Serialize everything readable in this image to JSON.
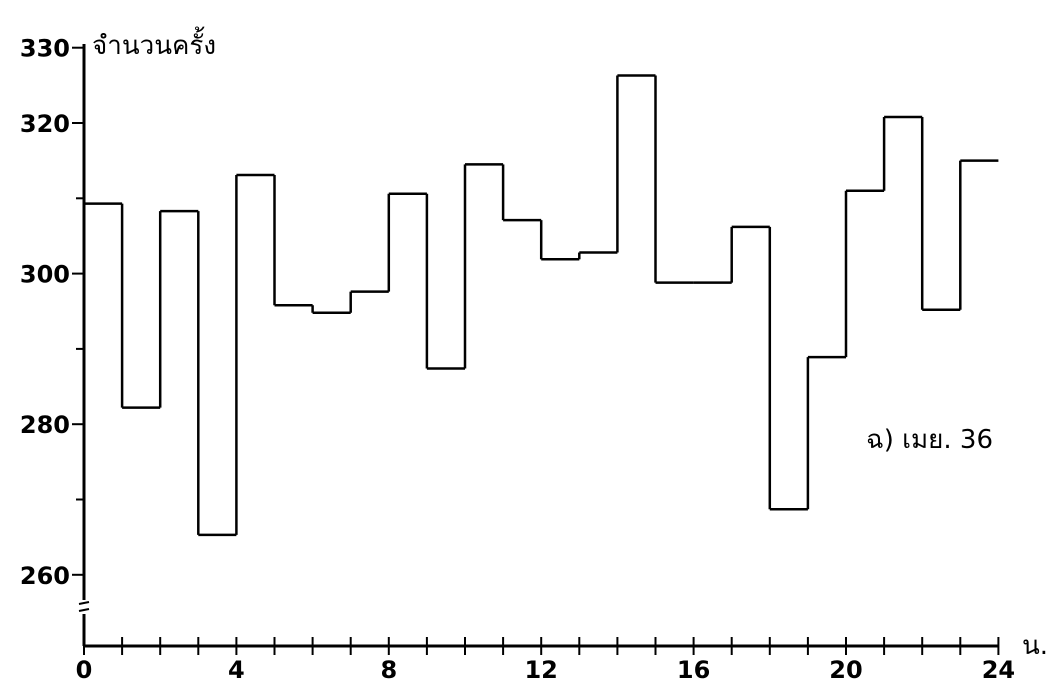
{
  "chart_data": {
    "type": "line",
    "subtype": "step",
    "ylabel": "จำนวนครั้ง",
    "xlabel": "น.",
    "annotation": "ฉ) เมย. 36",
    "x": [
      0,
      1,
      2,
      3,
      4,
      5,
      6,
      7,
      8,
      9,
      10,
      11,
      12,
      13,
      14,
      15,
      16,
      17,
      18,
      19,
      20,
      21,
      22,
      23
    ],
    "values": [
      309.3,
      282.2,
      308.3,
      265.3,
      313.1,
      295.8,
      294.8,
      297.6,
      310.6,
      287.4,
      314.5,
      307.1,
      301.9,
      302.8,
      326.3,
      298.8,
      298.8,
      306.2,
      268.7,
      288.9,
      311.0,
      320.8,
      295.2,
      315.0
    ],
    "xlim": [
      0,
      24
    ],
    "ylim": [
      250,
      330
    ],
    "x_ticks": [
      "0",
      "4",
      "8",
      "12",
      "16",
      "20",
      "24"
    ],
    "y_ticks": [
      "260",
      "280",
      "300",
      "320",
      "330"
    ],
    "y_axis_break": true,
    "grid": false,
    "line_color": "#000000"
  }
}
